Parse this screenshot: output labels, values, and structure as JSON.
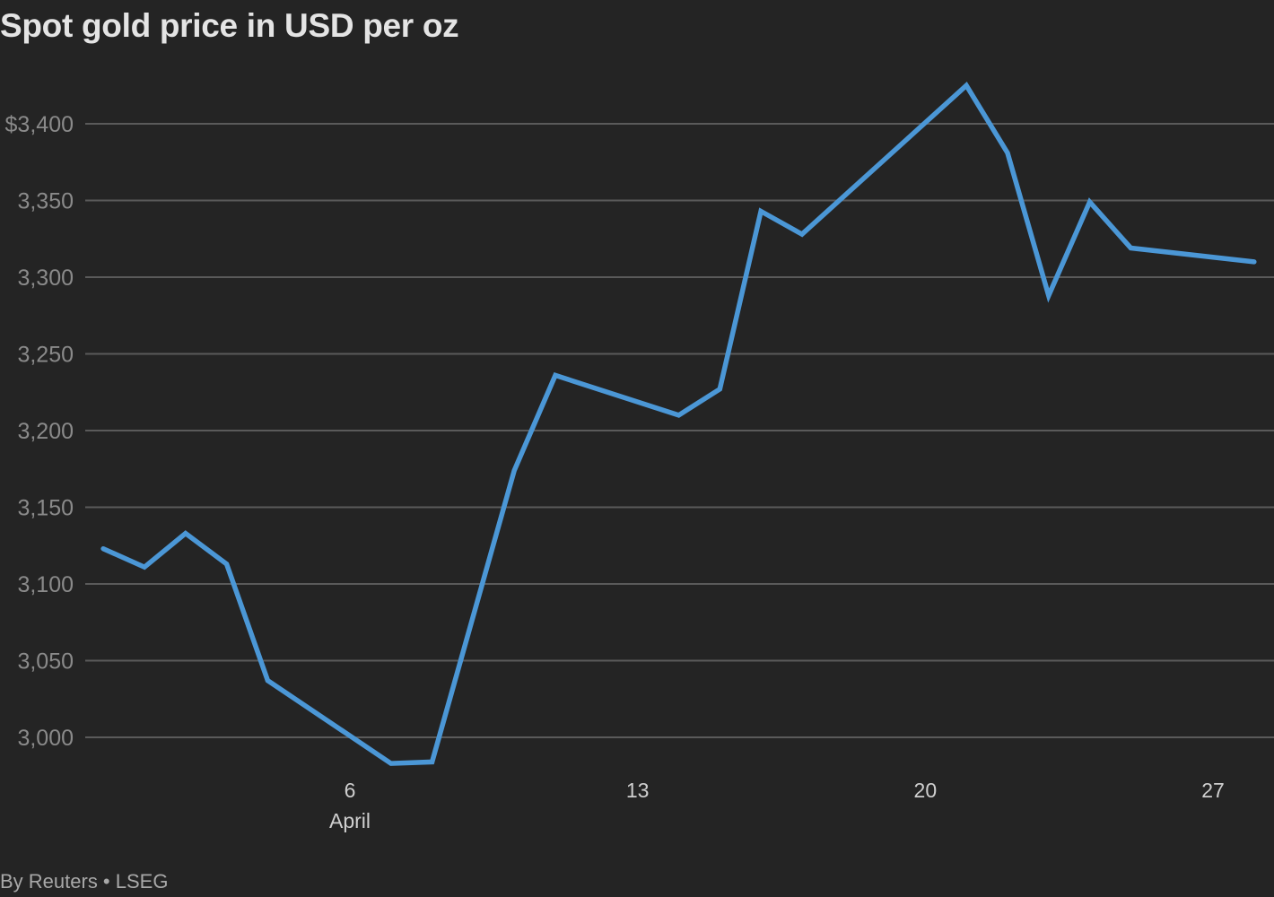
{
  "title": "Spot gold price in USD per oz",
  "footer": "By Reuters • LSEG",
  "colors": {
    "background": "#242424",
    "line": "#4b97d6",
    "gridline": "#5a5a5a",
    "title": "#e4e4e4",
    "ytick": "#8a8a8a",
    "xtick": "#cfcfcf",
    "footer": "#a8a8a8"
  },
  "chart_data": {
    "type": "line",
    "title": "Spot gold price in USD per oz",
    "xlabel": "",
    "ylabel": "",
    "ylim": [
      2980,
      3430
    ],
    "grid": true,
    "legend": null,
    "y_ticks": [
      {
        "value": 3400,
        "label": "$3,400"
      },
      {
        "value": 3350,
        "label": "3,350"
      },
      {
        "value": 3300,
        "label": "3,300"
      },
      {
        "value": 3250,
        "label": "3,250"
      },
      {
        "value": 3200,
        "label": "3,200"
      },
      {
        "value": 3150,
        "label": "3,150"
      },
      {
        "value": 3100,
        "label": "3,100"
      },
      {
        "value": 3050,
        "label": "3,050"
      },
      {
        "value": 3000,
        "label": "3,000"
      }
    ],
    "x_ticks": [
      {
        "day": 6,
        "label": "6",
        "sublabel": "April"
      },
      {
        "day": 13,
        "label": "13",
        "sublabel": ""
      },
      {
        "day": 20,
        "label": "20",
        "sublabel": ""
      },
      {
        "day": 27,
        "label": "27",
        "sublabel": ""
      }
    ],
    "series": [
      {
        "name": "Spot gold",
        "x": [
          "Mar 31",
          "Apr 1",
          "Apr 2",
          "Apr 3",
          "Apr 4",
          "Apr 7",
          "Apr 8",
          "Apr 10",
          "Apr 11",
          "Apr 14",
          "Apr 15",
          "Apr 16",
          "Apr 17",
          "Apr 21",
          "Apr 22",
          "Apr 23",
          "Apr 24",
          "Apr 25",
          "Apr 28"
        ],
        "day": [
          0,
          1,
          2,
          3,
          4,
          7,
          8,
          10,
          11,
          14,
          15,
          16,
          17,
          21,
          22,
          23,
          24,
          25,
          28
        ],
        "values": [
          3123,
          3111,
          3133,
          3113,
          3037,
          2983,
          2984,
          3174,
          3236,
          3210,
          3227,
          3343,
          3328,
          3425,
          3381,
          3288,
          3349,
          3319,
          3310
        ]
      }
    ]
  }
}
